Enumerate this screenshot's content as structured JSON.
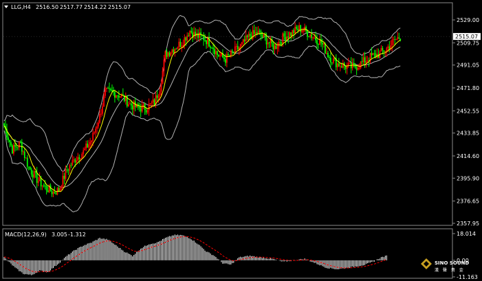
{
  "chart_data": [
    {
      "type": "candlestick",
      "symbol": "LLG,H4",
      "ohlc_header": {
        "open": "2516.50",
        "high": "2517.77",
        "low": "2514.22",
        "close": "2515.07"
      },
      "current_price": "2515.07",
      "y_ticks": [
        "2529.00",
        "2509.75",
        "2491.05",
        "2471.80",
        "2452.55",
        "2433.85",
        "2414.60",
        "2395.90",
        "2376.65",
        "2357.95"
      ],
      "y_tick_values": [
        2529.0,
        2509.75,
        2491.05,
        2471.8,
        2452.55,
        2433.85,
        2414.6,
        2395.9,
        2376.65,
        2357.95
      ],
      "ylim": [
        2357.95,
        2529.0
      ],
      "indicators": [
        "Bollinger Bands (grey)",
        "Moving average (yellow)"
      ],
      "close_path": [
        [
          0,
          2440
        ],
        [
          6,
          2420
        ],
        [
          12,
          2425
        ],
        [
          18,
          2405
        ],
        [
          24,
          2395
        ],
        [
          30,
          2388
        ],
        [
          36,
          2384
        ],
        [
          40,
          2386
        ],
        [
          46,
          2403
        ],
        [
          52,
          2412
        ],
        [
          58,
          2418
        ],
        [
          64,
          2428
        ],
        [
          70,
          2448
        ],
        [
          74,
          2468
        ],
        [
          80,
          2468
        ],
        [
          86,
          2465
        ],
        [
          92,
          2458
        ],
        [
          98,
          2455
        ],
        [
          104,
          2455
        ],
        [
          110,
          2460
        ],
        [
          114,
          2472
        ],
        [
          118,
          2500
        ],
        [
          124,
          2505
        ],
        [
          130,
          2510
        ],
        [
          136,
          2520
        ],
        [
          140,
          2516
        ],
        [
          146,
          2514
        ],
        [
          152,
          2508
        ],
        [
          156,
          2500
        ],
        [
          162,
          2496
        ],
        [
          168,
          2502
        ],
        [
          174,
          2508
        ],
        [
          180,
          2516
        ],
        [
          186,
          2518
        ],
        [
          192,
          2512
        ],
        [
          198,
          2506
        ],
        [
          204,
          2514
        ],
        [
          210,
          2518
        ],
        [
          216,
          2522
        ],
        [
          220,
          2520
        ],
        [
          226,
          2515
        ],
        [
          232,
          2510
        ],
        [
          238,
          2498
        ],
        [
          244,
          2492
        ],
        [
          250,
          2490
        ],
        [
          256,
          2489
        ],
        [
          262,
          2493
        ],
        [
          268,
          2498
        ],
        [
          274,
          2500
        ],
        [
          280,
          2505
        ],
        [
          286,
          2512
        ],
        [
          290,
          2515
        ]
      ],
      "candle_colors": {
        "up": "#ff0000",
        "down": "#00ff00"
      }
    },
    {
      "type": "bar",
      "title": "MACD(12,26,9)",
      "macd_value": "3.005",
      "signal_value": "-1.312",
      "y_ticks": [
        "18.014",
        "0.00",
        "-11.163"
      ],
      "ylim": [
        -11.163,
        18.014
      ],
      "histogram_path": [
        [
          0,
          2
        ],
        [
          8,
          -5
        ],
        [
          14,
          -9
        ],
        [
          20,
          -10
        ],
        [
          26,
          -7
        ],
        [
          32,
          -8
        ],
        [
          40,
          -2
        ],
        [
          46,
          3
        ],
        [
          52,
          7
        ],
        [
          58,
          10
        ],
        [
          64,
          12
        ],
        [
          70,
          15
        ],
        [
          76,
          14
        ],
        [
          82,
          10
        ],
        [
          88,
          6
        ],
        [
          94,
          3
        ],
        [
          100,
          8
        ],
        [
          106,
          11
        ],
        [
          112,
          12
        ],
        [
          118,
          15
        ],
        [
          124,
          17
        ],
        [
          130,
          17
        ],
        [
          136,
          15
        ],
        [
          142,
          11
        ],
        [
          148,
          6
        ],
        [
          154,
          3
        ],
        [
          160,
          -2
        ],
        [
          166,
          -3
        ],
        [
          172,
          2
        ],
        [
          180,
          3
        ],
        [
          188,
          2
        ],
        [
          196,
          1
        ],
        [
          204,
          -1
        ],
        [
          212,
          0
        ],
        [
          220,
          1
        ],
        [
          228,
          -2
        ],
        [
          236,
          -5
        ],
        [
          244,
          -6
        ],
        [
          252,
          -5
        ],
        [
          258,
          -4
        ],
        [
          264,
          -3
        ],
        [
          270,
          -1
        ],
        [
          276,
          2
        ],
        [
          280,
          3
        ]
      ]
    }
  ],
  "logo": {
    "line1": "SINO SOUND",
    "line2": "漢 聲 貴 金"
  }
}
